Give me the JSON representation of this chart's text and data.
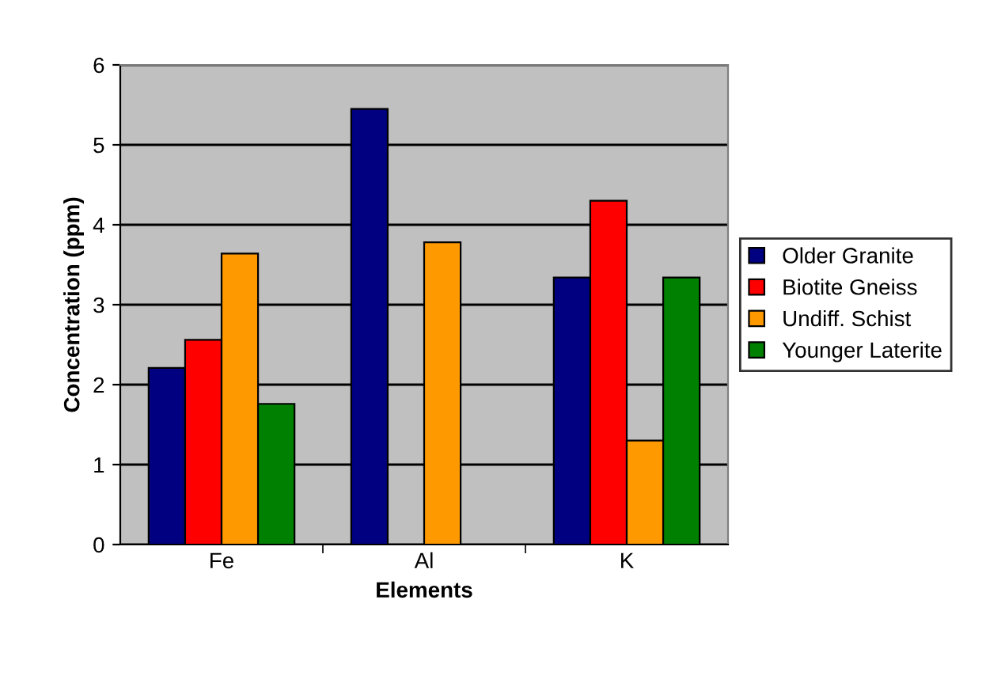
{
  "chart_data": {
    "type": "bar",
    "xlabel": "Elements",
    "ylabel": "Concentration (ppm)",
    "categories": [
      "Fe",
      "Al",
      "K"
    ],
    "series": [
      {
        "name": "Older Granite",
        "color": "#000080",
        "values": [
          2.21,
          5.45,
          3.34
        ]
      },
      {
        "name": "Biotite Gneiss",
        "color": "#ff0000",
        "values": [
          2.56,
          null,
          4.3
        ]
      },
      {
        "name": "Undiff. Schist",
        "color": "#ff9900",
        "values": [
          3.64,
          3.78,
          1.3
        ]
      },
      {
        "name": "Younger Laterite",
        "color": "#008000",
        "values": [
          1.76,
          null,
          3.34
        ]
      }
    ],
    "ylim": [
      0,
      6
    ],
    "yticks": [
      0,
      1,
      2,
      3,
      4,
      5,
      6
    ],
    "grid": "y",
    "legend": "right"
  }
}
